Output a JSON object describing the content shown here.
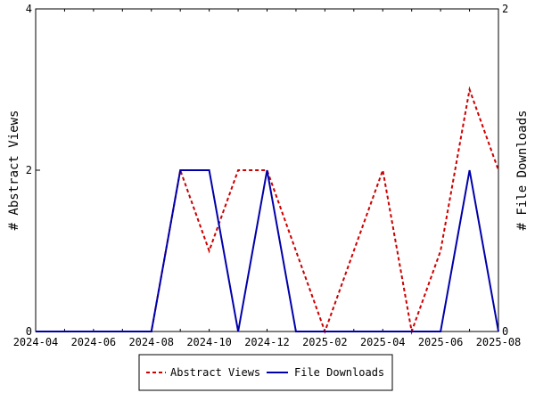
{
  "chart_data": {
    "type": "line",
    "x": [
      "2024-04",
      "2024-05",
      "2024-06",
      "2024-07",
      "2024-08",
      "2024-09",
      "2024-10",
      "2024-11",
      "2024-12",
      "2025-01",
      "2025-02",
      "2025-03",
      "2025-04",
      "2025-05",
      "2025-06",
      "2025-07",
      "2025-08"
    ],
    "x_ticks": [
      "2024-04",
      "2024-06",
      "2024-08",
      "2024-10",
      "2024-12",
      "2025-02",
      "2025-04",
      "2025-06",
      "2025-08"
    ],
    "series": [
      {
        "name": "Abstract Views",
        "axis": "left",
        "color": "#cc0000",
        "style": "dashed",
        "values": [
          0,
          0,
          0,
          0,
          0,
          2,
          1,
          2,
          2,
          1,
          0,
          1,
          2,
          0,
          1,
          3,
          2
        ]
      },
      {
        "name": "File Downloads",
        "axis": "right",
        "color": "#0000aa",
        "style": "solid",
        "values": [
          0,
          0,
          0,
          0,
          0,
          1,
          1,
          0,
          1,
          0,
          0,
          0,
          0,
          0,
          0,
          1,
          0
        ]
      }
    ],
    "ylabel_left": "# Abstract Views",
    "ylabel_right": "# File Downloads",
    "ylim_left": [
      0,
      4
    ],
    "ylim_right": [
      0,
      2
    ],
    "yticks_left": [
      0,
      2,
      4
    ],
    "yticks_right": [
      0,
      2
    ],
    "legend_position": "bottom-center",
    "grid": false
  }
}
